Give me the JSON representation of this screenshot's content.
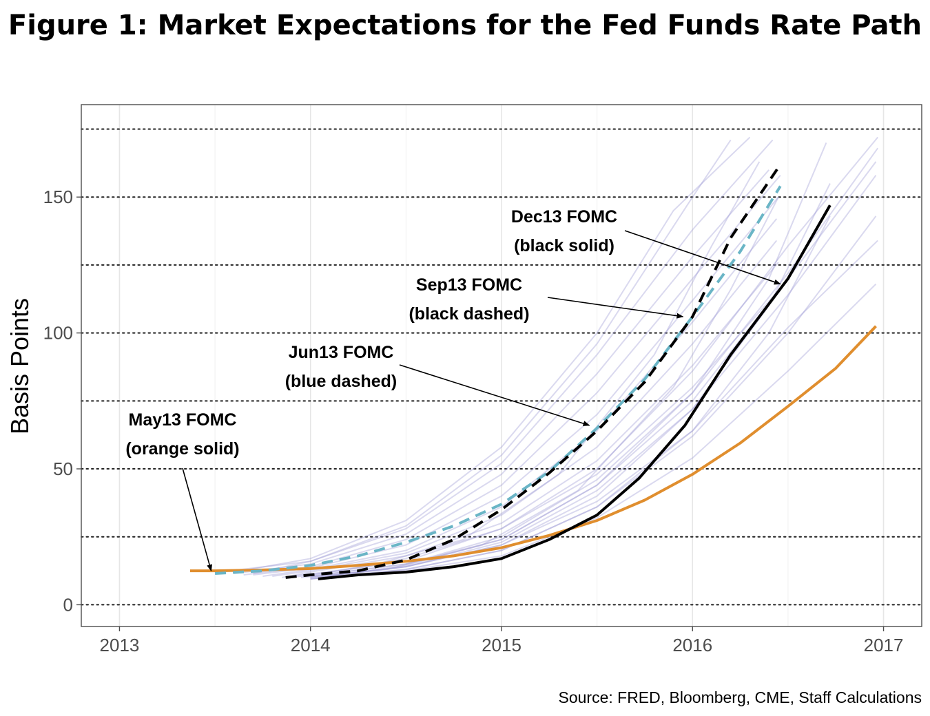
{
  "title": "Figure 1: Market Expectations for the Fed Funds Rate Path",
  "source": "Source: FRED, Bloomberg, CME, Staff Calculations",
  "chart_data": {
    "type": "line",
    "xlabel": "",
    "ylabel": "Basis Points",
    "xlim": [
      2012.8,
      2017.2
    ],
    "ylim": [
      -8,
      184
    ],
    "x_ticks": [
      2013,
      2014,
      2015,
      2016,
      2017
    ],
    "y_ticks": [
      0,
      50,
      100,
      150
    ],
    "dotted_reference_lines": [
      0,
      25,
      50,
      75,
      100,
      125,
      150,
      175
    ],
    "grid": true,
    "highlighted_series": [
      {
        "color": "#e08e2e",
        "dash": "solid",
        "x": [
          2013.37,
          2013.5,
          2013.75,
          2014.0,
          2014.25,
          2014.5,
          2014.75,
          2015.0,
          2015.25,
          2015.5,
          2015.75,
          2016.0,
          2016.25,
          2016.5,
          2016.75,
          2016.96
        ],
        "y": [
          12.5,
          12.5,
          12.8,
          13.3,
          14.5,
          16,
          18,
          21,
          25.5,
          31,
          38.5,
          48,
          59.5,
          73,
          87,
          102.5
        ]
      },
      {
        "color": "#6ab5c6",
        "dash": "dashed",
        "x": [
          2013.5,
          2013.75,
          2014.0,
          2014.25,
          2014.5,
          2014.75,
          2015.0,
          2015.25,
          2015.5,
          2015.75,
          2016.0,
          2016.25,
          2016.46
        ],
        "y": [
          11.5,
          12.5,
          14.5,
          18,
          23,
          29,
          37,
          49,
          65,
          83,
          106,
          130,
          154
        ]
      },
      {
        "color": "#000000",
        "dash": "dashed",
        "x": [
          2013.87,
          2014.0,
          2014.25,
          2014.5,
          2014.75,
          2015.0,
          2015.25,
          2015.5,
          2015.75,
          2016.0,
          2016.2,
          2016.46
        ],
        "y": [
          10,
          11,
          12.5,
          16.5,
          24,
          35,
          48.5,
          64,
          82,
          106,
          135,
          162
        ]
      },
      {
        "color": "#000000",
        "dash": "solid",
        "x": [
          2014.04,
          2014.25,
          2014.5,
          2014.75,
          2015.0,
          2015.25,
          2015.5,
          2015.72,
          2015.96,
          2016.2,
          2016.5,
          2016.72
        ],
        "y": [
          9.5,
          11,
          12,
          14,
          17,
          24,
          33,
          46.5,
          66,
          92,
          120,
          147
        ]
      }
    ],
    "background_series": [
      {
        "x": [
          2013.52,
          2014.0,
          2014.5,
          2015.0,
          2015.5,
          2016.0,
          2016.42
        ],
        "y": [
          12,
          16,
          28,
          52,
          92,
          138,
          171
        ]
      },
      {
        "x": [
          2013.6,
          2014.0,
          2014.5,
          2015.0,
          2015.5,
          2016.0,
          2016.4
        ],
        "y": [
          11.5,
          15,
          26,
          48,
          85,
          128,
          160
        ]
      },
      {
        "x": [
          2013.65,
          2014.0,
          2014.5,
          2015.0,
          2015.5,
          2016.0,
          2016.46
        ],
        "y": [
          11,
          14,
          24,
          44,
          78,
          120,
          158
        ]
      },
      {
        "x": [
          2013.7,
          2014.0,
          2014.5,
          2015.0,
          2015.5,
          2016.0,
          2016.45
        ],
        "y": [
          11,
          13.5,
          22,
          40,
          70,
          112,
          150
        ]
      },
      {
        "x": [
          2013.75,
          2014.0,
          2014.5,
          2015.0,
          2015.5,
          2016.0,
          2016.44
        ],
        "y": [
          10.5,
          13,
          20,
          36,
          64,
          104,
          142
        ]
      },
      {
        "x": [
          2013.8,
          2014.0,
          2014.5,
          2015.0,
          2015.5,
          2016.0,
          2016.44
        ],
        "y": [
          10.5,
          12.5,
          19,
          33,
          58,
          96,
          134
        ]
      },
      {
        "x": [
          2013.85,
          2014.0,
          2014.5,
          2015.0,
          2015.5,
          2016.0,
          2016.45
        ],
        "y": [
          10,
          12,
          18,
          30,
          53,
          88,
          126
        ]
      },
      {
        "x": [
          2013.9,
          2014.1,
          2014.5,
          2015.0,
          2015.5,
          2016.0,
          2016.48
        ],
        "y": [
          10,
          12,
          17,
          28,
          48,
          80,
          118
        ]
      },
      {
        "x": [
          2013.6,
          2014.0,
          2014.5,
          2015.0,
          2015.5,
          2015.9,
          2016.3
        ],
        "y": [
          12,
          17,
          31,
          58,
          100,
          145,
          172
        ]
      },
      {
        "x": [
          2013.7,
          2014.0,
          2014.5,
          2015.0,
          2015.5,
          2016.0,
          2016.2
        ],
        "y": [
          11.5,
          16,
          29,
          55,
          96,
          150,
          171
        ]
      },
      {
        "x": [
          2014.0,
          2014.5,
          2015.0,
          2015.5,
          2016.0,
          2016.5,
          2016.96
        ],
        "y": [
          9.5,
          13,
          20,
          36,
          62,
          100,
          143
        ]
      },
      {
        "x": [
          2014.0,
          2014.5,
          2015.0,
          2015.5,
          2016.0,
          2016.5,
          2016.96
        ],
        "y": [
          10,
          14,
          23,
          42,
          72,
          114,
          158
        ]
      },
      {
        "x": [
          2014.0,
          2014.5,
          2015.0,
          2015.5,
          2016.0,
          2016.5,
          2016.97
        ],
        "y": [
          10.5,
          15,
          25,
          46,
          78,
          122,
          168
        ]
      },
      {
        "x": [
          2014.0,
          2014.5,
          2015.0,
          2015.5,
          2016.0,
          2016.5,
          2016.97
        ],
        "y": [
          10,
          14,
          22,
          38,
          64,
          102,
          134
        ]
      },
      {
        "x": [
          2014.0,
          2014.5,
          2015.0,
          2015.5,
          2016.0,
          2016.5,
          2016.96
        ],
        "y": [
          9.5,
          12.5,
          18,
          32,
          54,
          86,
          118
        ]
      },
      {
        "x": [
          2014.0,
          2014.5,
          2015.0,
          2015.5,
          2016.0,
          2016.5,
          2016.97
        ],
        "y": [
          11,
          16,
          28,
          50,
          86,
          132,
          172
        ]
      },
      {
        "x": [
          2014.0,
          2014.5,
          2015.0,
          2015.5,
          2016.0,
          2016.5,
          2016.96
        ],
        "y": [
          10.5,
          15,
          24,
          44,
          75,
          120,
          163
        ]
      },
      {
        "x": [
          2014.05,
          2014.5,
          2015.0,
          2015.5,
          2016.0,
          2016.4,
          2016.7
        ],
        "y": [
          10,
          14.5,
          24,
          44,
          78,
          120,
          170
        ]
      },
      {
        "x": [
          2014.05,
          2014.5,
          2015.0,
          2015.5,
          2016.0,
          2016.4,
          2016.72
        ],
        "y": [
          10,
          14,
          22,
          40,
          72,
          110,
          155
        ]
      },
      {
        "x": [
          2014.0,
          2014.5,
          2015.0,
          2015.5,
          2016.0,
          2016.4,
          2016.72
        ],
        "y": [
          9.5,
          13,
          20,
          36,
          64,
          100,
          143
        ]
      },
      {
        "x": [
          2013.9,
          2014.3,
          2014.8,
          2015.3,
          2015.8,
          2016.1,
          2016.35
        ],
        "y": [
          10.5,
          14,
          24,
          48,
          92,
          132,
          163
        ]
      },
      {
        "x": [
          2013.95,
          2014.4,
          2014.9,
          2015.4,
          2015.9,
          2016.2,
          2016.45
        ],
        "y": [
          10,
          13,
          22,
          42,
          80,
          116,
          150
        ]
      }
    ],
    "annotations": [
      {
        "line1": "May13 FOMC",
        "line2": "(orange solid)",
        "target_x": 2013.48,
        "target_y": 12.5
      },
      {
        "line1": "Jun13 FOMC",
        "line2": "(blue dashed)",
        "target_x": 2015.46,
        "target_y": 66
      },
      {
        "line1": "Sep13 FOMC",
        "line2": "(black dashed)",
        "target_x": 2015.95,
        "target_y": 106
      },
      {
        "line1": "Dec13 FOMC",
        "line2": "(black solid)",
        "target_x": 2016.46,
        "target_y": 118
      }
    ]
  }
}
